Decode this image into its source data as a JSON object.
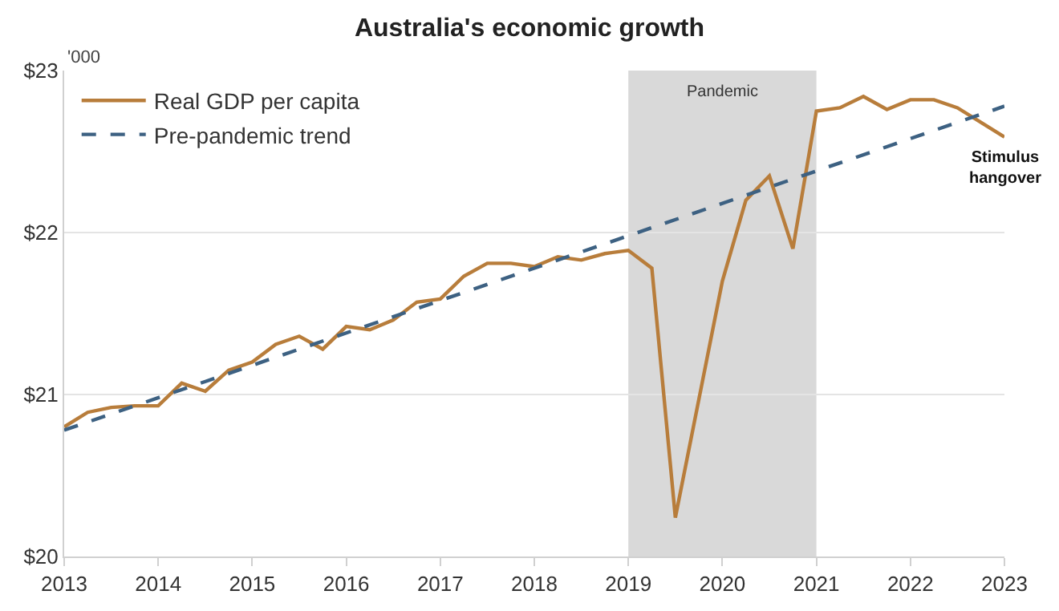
{
  "chart_data": {
    "type": "line",
    "title": "Australia's economic growth",
    "ylabel": "'000",
    "series": [
      {
        "name": "Real GDP per capita",
        "color": "#b87d3b",
        "line_style": "solid",
        "x": [
          2013,
          2013.25,
          2013.5,
          2013.75,
          2014,
          2014.25,
          2014.5,
          2014.75,
          2015,
          2015.25,
          2015.5,
          2015.75,
          2016,
          2016.25,
          2016.5,
          2016.75,
          2017,
          2017.25,
          2017.5,
          2017.75,
          2018,
          2018.25,
          2018.5,
          2018.75,
          2019,
          2019.25,
          2019.5,
          2019.75,
          2020,
          2020.25,
          2020.5,
          2020.75,
          2021,
          2021.25,
          2021.5,
          2021.75,
          2022,
          2022.25,
          2022.5,
          2022.75,
          2023
        ],
        "values": [
          20.8,
          20.89,
          20.92,
          20.93,
          20.93,
          21.07,
          21.02,
          21.15,
          21.2,
          21.31,
          21.36,
          21.28,
          21.42,
          21.4,
          21.46,
          21.57,
          21.59,
          21.73,
          21.81,
          21.81,
          21.79,
          21.85,
          21.83,
          21.87,
          21.89,
          21.78,
          20.24,
          20.97,
          21.7,
          22.2,
          22.35,
          21.9,
          22.75,
          22.77,
          22.84,
          22.76,
          22.82,
          22.82,
          22.77,
          22.68,
          22.59
        ]
      },
      {
        "name": "Pre-pandemic trend",
        "color": "#3d6182",
        "line_style": "dashed",
        "x": [
          2013,
          2023
        ],
        "values": [
          20.78,
          22.78
        ]
      }
    ],
    "xlim": [
      2013,
      2023
    ],
    "xticks": [
      2013,
      2014,
      2015,
      2016,
      2017,
      2018,
      2019,
      2020,
      2021,
      2022,
      2023
    ],
    "ylim": [
      20,
      23
    ],
    "yticks": [
      {
        "value": 20,
        "label": "$20"
      },
      {
        "value": 21,
        "label": "$21"
      },
      {
        "value": 22,
        "label": "$22"
      },
      {
        "value": 23,
        "label": "$23"
      }
    ],
    "grid": "y",
    "legend": "top left",
    "marker": "none",
    "bands": [
      {
        "axis": "x",
        "from": 2019,
        "to": 2021,
        "label": "Pandemic",
        "color": "#d9d9d9"
      }
    ],
    "annotations": [
      {
        "text": "Stimulus\nhangover",
        "x": 2023,
        "y": 22.59
      }
    ]
  }
}
